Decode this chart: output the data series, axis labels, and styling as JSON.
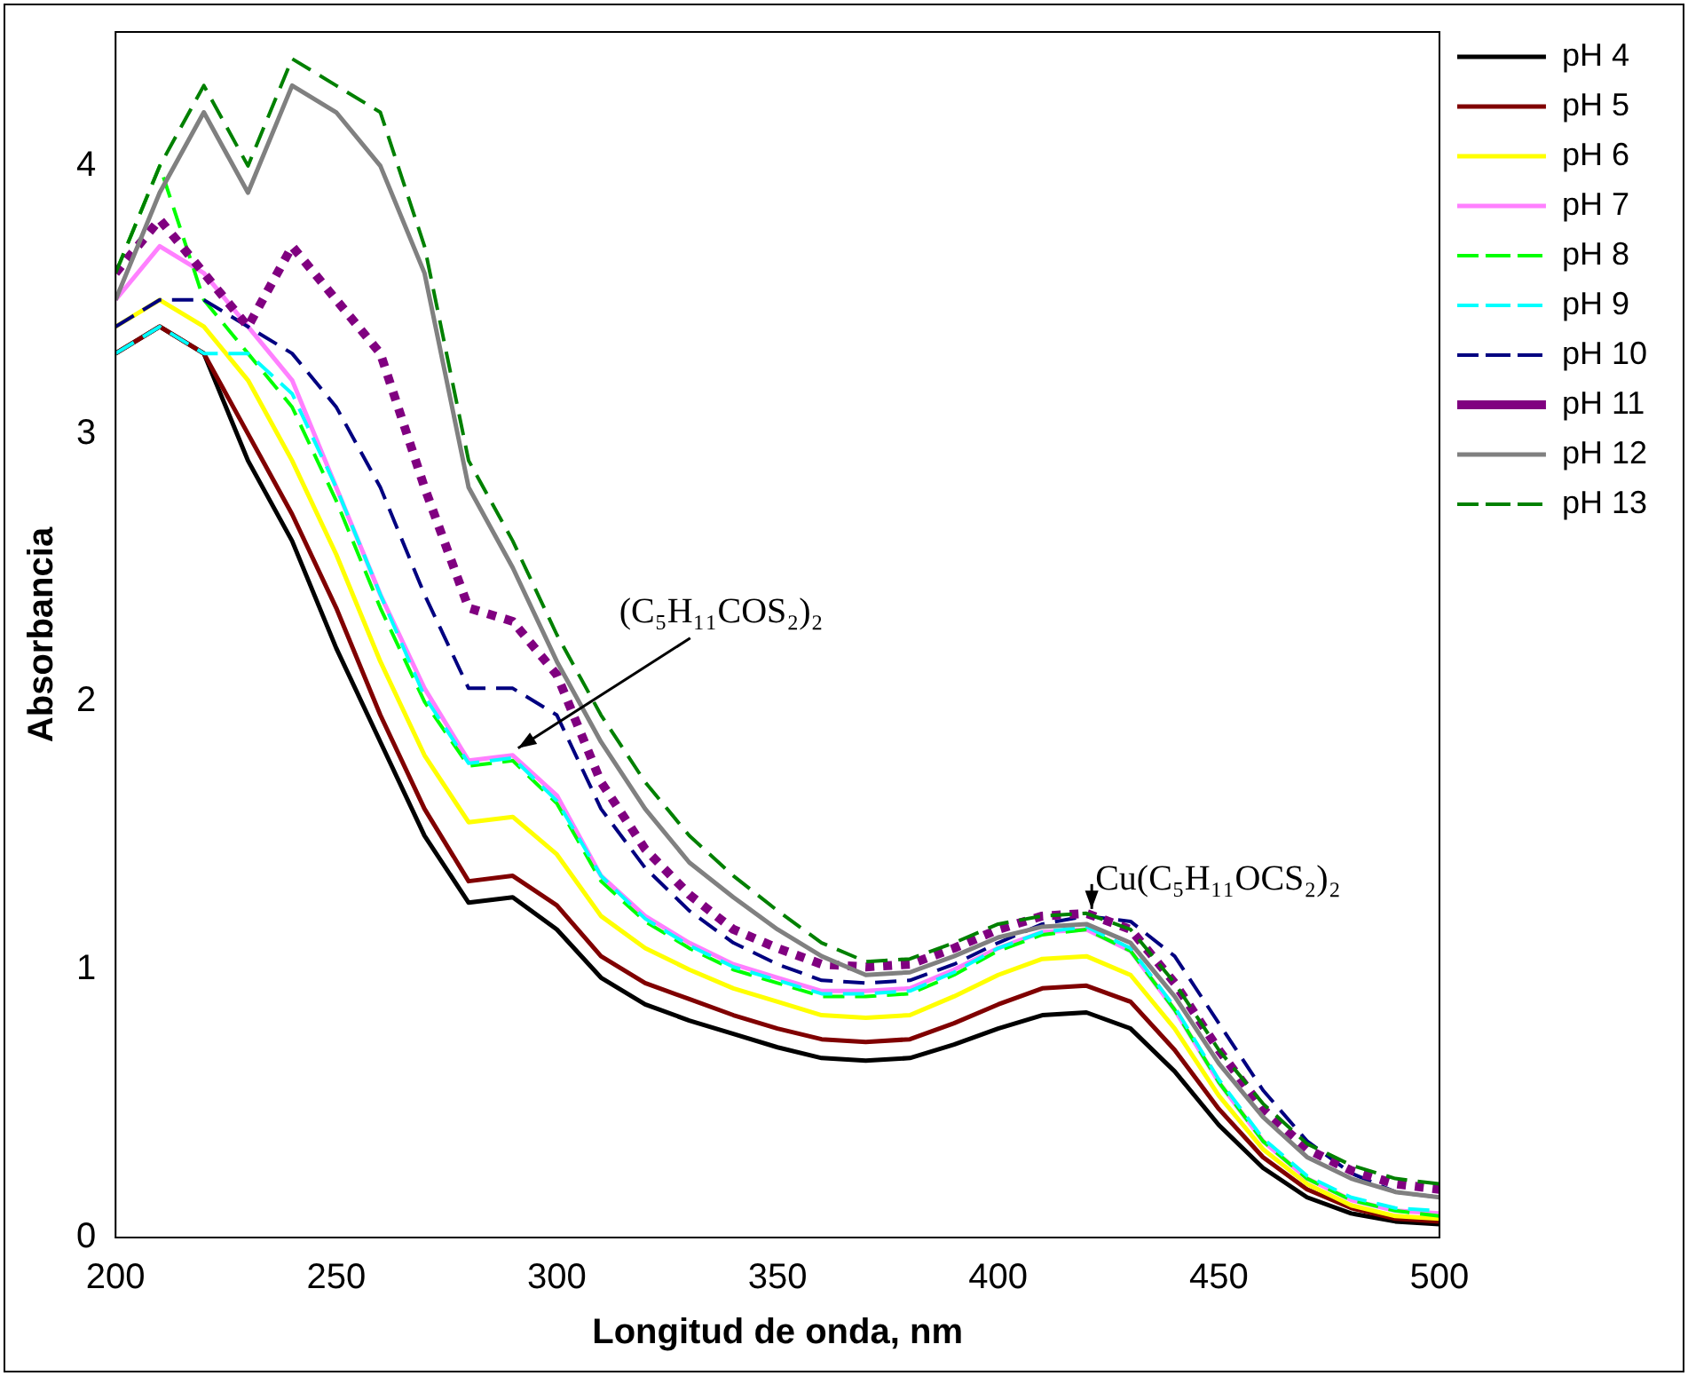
{
  "chart_data": {
    "type": "line",
    "xlabel": "Longitud de onda, nm",
    "ylabel": "Absorbancia",
    "x": [
      200,
      210,
      220,
      230,
      240,
      250,
      260,
      270,
      280,
      290,
      300,
      310,
      320,
      330,
      340,
      350,
      360,
      370,
      380,
      390,
      400,
      410,
      420,
      430,
      440,
      450,
      460,
      470,
      480,
      490,
      500
    ],
    "xlim": [
      200,
      500
    ],
    "xticks": [
      200,
      250,
      300,
      350,
      400,
      450,
      500
    ],
    "ylim": [
      0,
      4.5
    ],
    "yticks": [
      0,
      1,
      2,
      3,
      4
    ],
    "grid": false,
    "legend": "right",
    "marker": "none",
    "series": [
      {
        "name": "pH 4",
        "color": "#000000",
        "line_style": "solid",
        "values": [
          3.3,
          3.4,
          3.3,
          2.9,
          2.6,
          2.2,
          1.85,
          1.5,
          1.25,
          1.27,
          1.15,
          0.97,
          0.87,
          0.81,
          0.76,
          0.71,
          0.67,
          0.66,
          0.67,
          0.72,
          0.78,
          0.83,
          0.84,
          0.78,
          0.62,
          0.42,
          0.26,
          0.15,
          0.09,
          0.06,
          0.05
        ]
      },
      {
        "name": "pH 5",
        "color": "#800000",
        "line_style": "solid",
        "values": [
          3.3,
          3.4,
          3.3,
          3.0,
          2.7,
          2.35,
          1.95,
          1.6,
          1.33,
          1.35,
          1.24,
          1.05,
          0.95,
          0.89,
          0.83,
          0.78,
          0.74,
          0.73,
          0.74,
          0.8,
          0.87,
          0.93,
          0.94,
          0.88,
          0.7,
          0.48,
          0.3,
          0.18,
          0.11,
          0.07,
          0.06
        ]
      },
      {
        "name": "pH 6",
        "color": "#ffff00",
        "line_style": "solid",
        "values": [
          3.4,
          3.5,
          3.4,
          3.2,
          2.9,
          2.55,
          2.15,
          1.8,
          1.55,
          1.57,
          1.43,
          1.2,
          1.08,
          1.0,
          0.93,
          0.88,
          0.83,
          0.82,
          0.83,
          0.9,
          0.98,
          1.04,
          1.05,
          0.98,
          0.78,
          0.53,
          0.33,
          0.2,
          0.12,
          0.08,
          0.07
        ]
      },
      {
        "name": "pH 7",
        "color": "#ff80ff",
        "line_style": "solid",
        "values": [
          3.5,
          3.7,
          3.6,
          3.4,
          3.2,
          2.8,
          2.4,
          2.05,
          1.78,
          1.8,
          1.65,
          1.35,
          1.2,
          1.1,
          1.02,
          0.97,
          0.92,
          0.92,
          0.93,
          1.0,
          1.08,
          1.14,
          1.15,
          1.07,
          0.85,
          0.58,
          0.36,
          0.22,
          0.14,
          0.1,
          0.09
        ]
      },
      {
        "name": "pH 8",
        "color": "#00ff00",
        "line_style": "dashed",
        "values": [
          3.6,
          4.0,
          3.5,
          3.3,
          3.1,
          2.75,
          2.35,
          2.0,
          1.76,
          1.78,
          1.62,
          1.33,
          1.18,
          1.08,
          1.0,
          0.95,
          0.9,
          0.9,
          0.91,
          0.98,
          1.07,
          1.13,
          1.15,
          1.07,
          0.85,
          0.58,
          0.36,
          0.22,
          0.14,
          0.1,
          0.08
        ]
      },
      {
        "name": "pH 9",
        "color": "#00ffff",
        "line_style": "dashed",
        "values": [
          3.3,
          3.4,
          3.3,
          3.3,
          3.15,
          2.8,
          2.4,
          2.02,
          1.77,
          1.79,
          1.63,
          1.35,
          1.19,
          1.09,
          1.01,
          0.96,
          0.91,
          0.91,
          0.92,
          0.99,
          1.08,
          1.14,
          1.16,
          1.08,
          0.86,
          0.59,
          0.37,
          0.23,
          0.15,
          0.11,
          0.1
        ]
      },
      {
        "name": "pH 10",
        "color": "#000080",
        "line_style": "dashed",
        "values": [
          3.4,
          3.5,
          3.5,
          3.4,
          3.3,
          3.1,
          2.8,
          2.4,
          2.05,
          2.05,
          1.95,
          1.6,
          1.38,
          1.22,
          1.1,
          1.02,
          0.96,
          0.95,
          0.96,
          1.02,
          1.1,
          1.17,
          1.2,
          1.18,
          1.05,
          0.8,
          0.55,
          0.36,
          0.24,
          0.17,
          0.15
        ]
      },
      {
        "name": "pH 11",
        "color": "#800080",
        "line_style": "dotted",
        "values": [
          3.6,
          3.8,
          3.6,
          3.4,
          3.7,
          3.5,
          3.3,
          2.8,
          2.35,
          2.3,
          2.1,
          1.7,
          1.45,
          1.28,
          1.15,
          1.08,
          1.02,
          1.01,
          1.02,
          1.08,
          1.15,
          1.2,
          1.21,
          1.15,
          0.95,
          0.7,
          0.48,
          0.33,
          0.25,
          0.2,
          0.18
        ]
      },
      {
        "name": "pH 12",
        "color": "#808080",
        "line_style": "solid",
        "values": [
          3.5,
          3.9,
          4.2,
          3.9,
          4.3,
          4.2,
          4.0,
          3.6,
          2.8,
          2.5,
          2.15,
          1.85,
          1.6,
          1.4,
          1.27,
          1.15,
          1.05,
          0.98,
          0.99,
          1.05,
          1.12,
          1.16,
          1.17,
          1.1,
          0.9,
          0.65,
          0.45,
          0.3,
          0.22,
          0.17,
          0.15
        ]
      },
      {
        "name": "pH 13",
        "color": "#008000",
        "line_style": "dashed",
        "values": [
          3.6,
          4.0,
          4.3,
          4.0,
          4.4,
          4.3,
          4.2,
          3.7,
          2.9,
          2.6,
          2.25,
          1.95,
          1.7,
          1.5,
          1.35,
          1.22,
          1.1,
          1.03,
          1.04,
          1.1,
          1.17,
          1.2,
          1.21,
          1.15,
          0.95,
          0.7,
          0.5,
          0.35,
          0.27,
          0.22,
          0.2
        ]
      }
    ],
    "annotations": [
      {
        "text": "(C₅H₁₁COS₂)₂",
        "x": 290,
        "y": 1.8
      },
      {
        "text": "Cu(C₅H₁₁OCS₂)₂",
        "x": 420,
        "y": 1.2
      }
    ]
  }
}
